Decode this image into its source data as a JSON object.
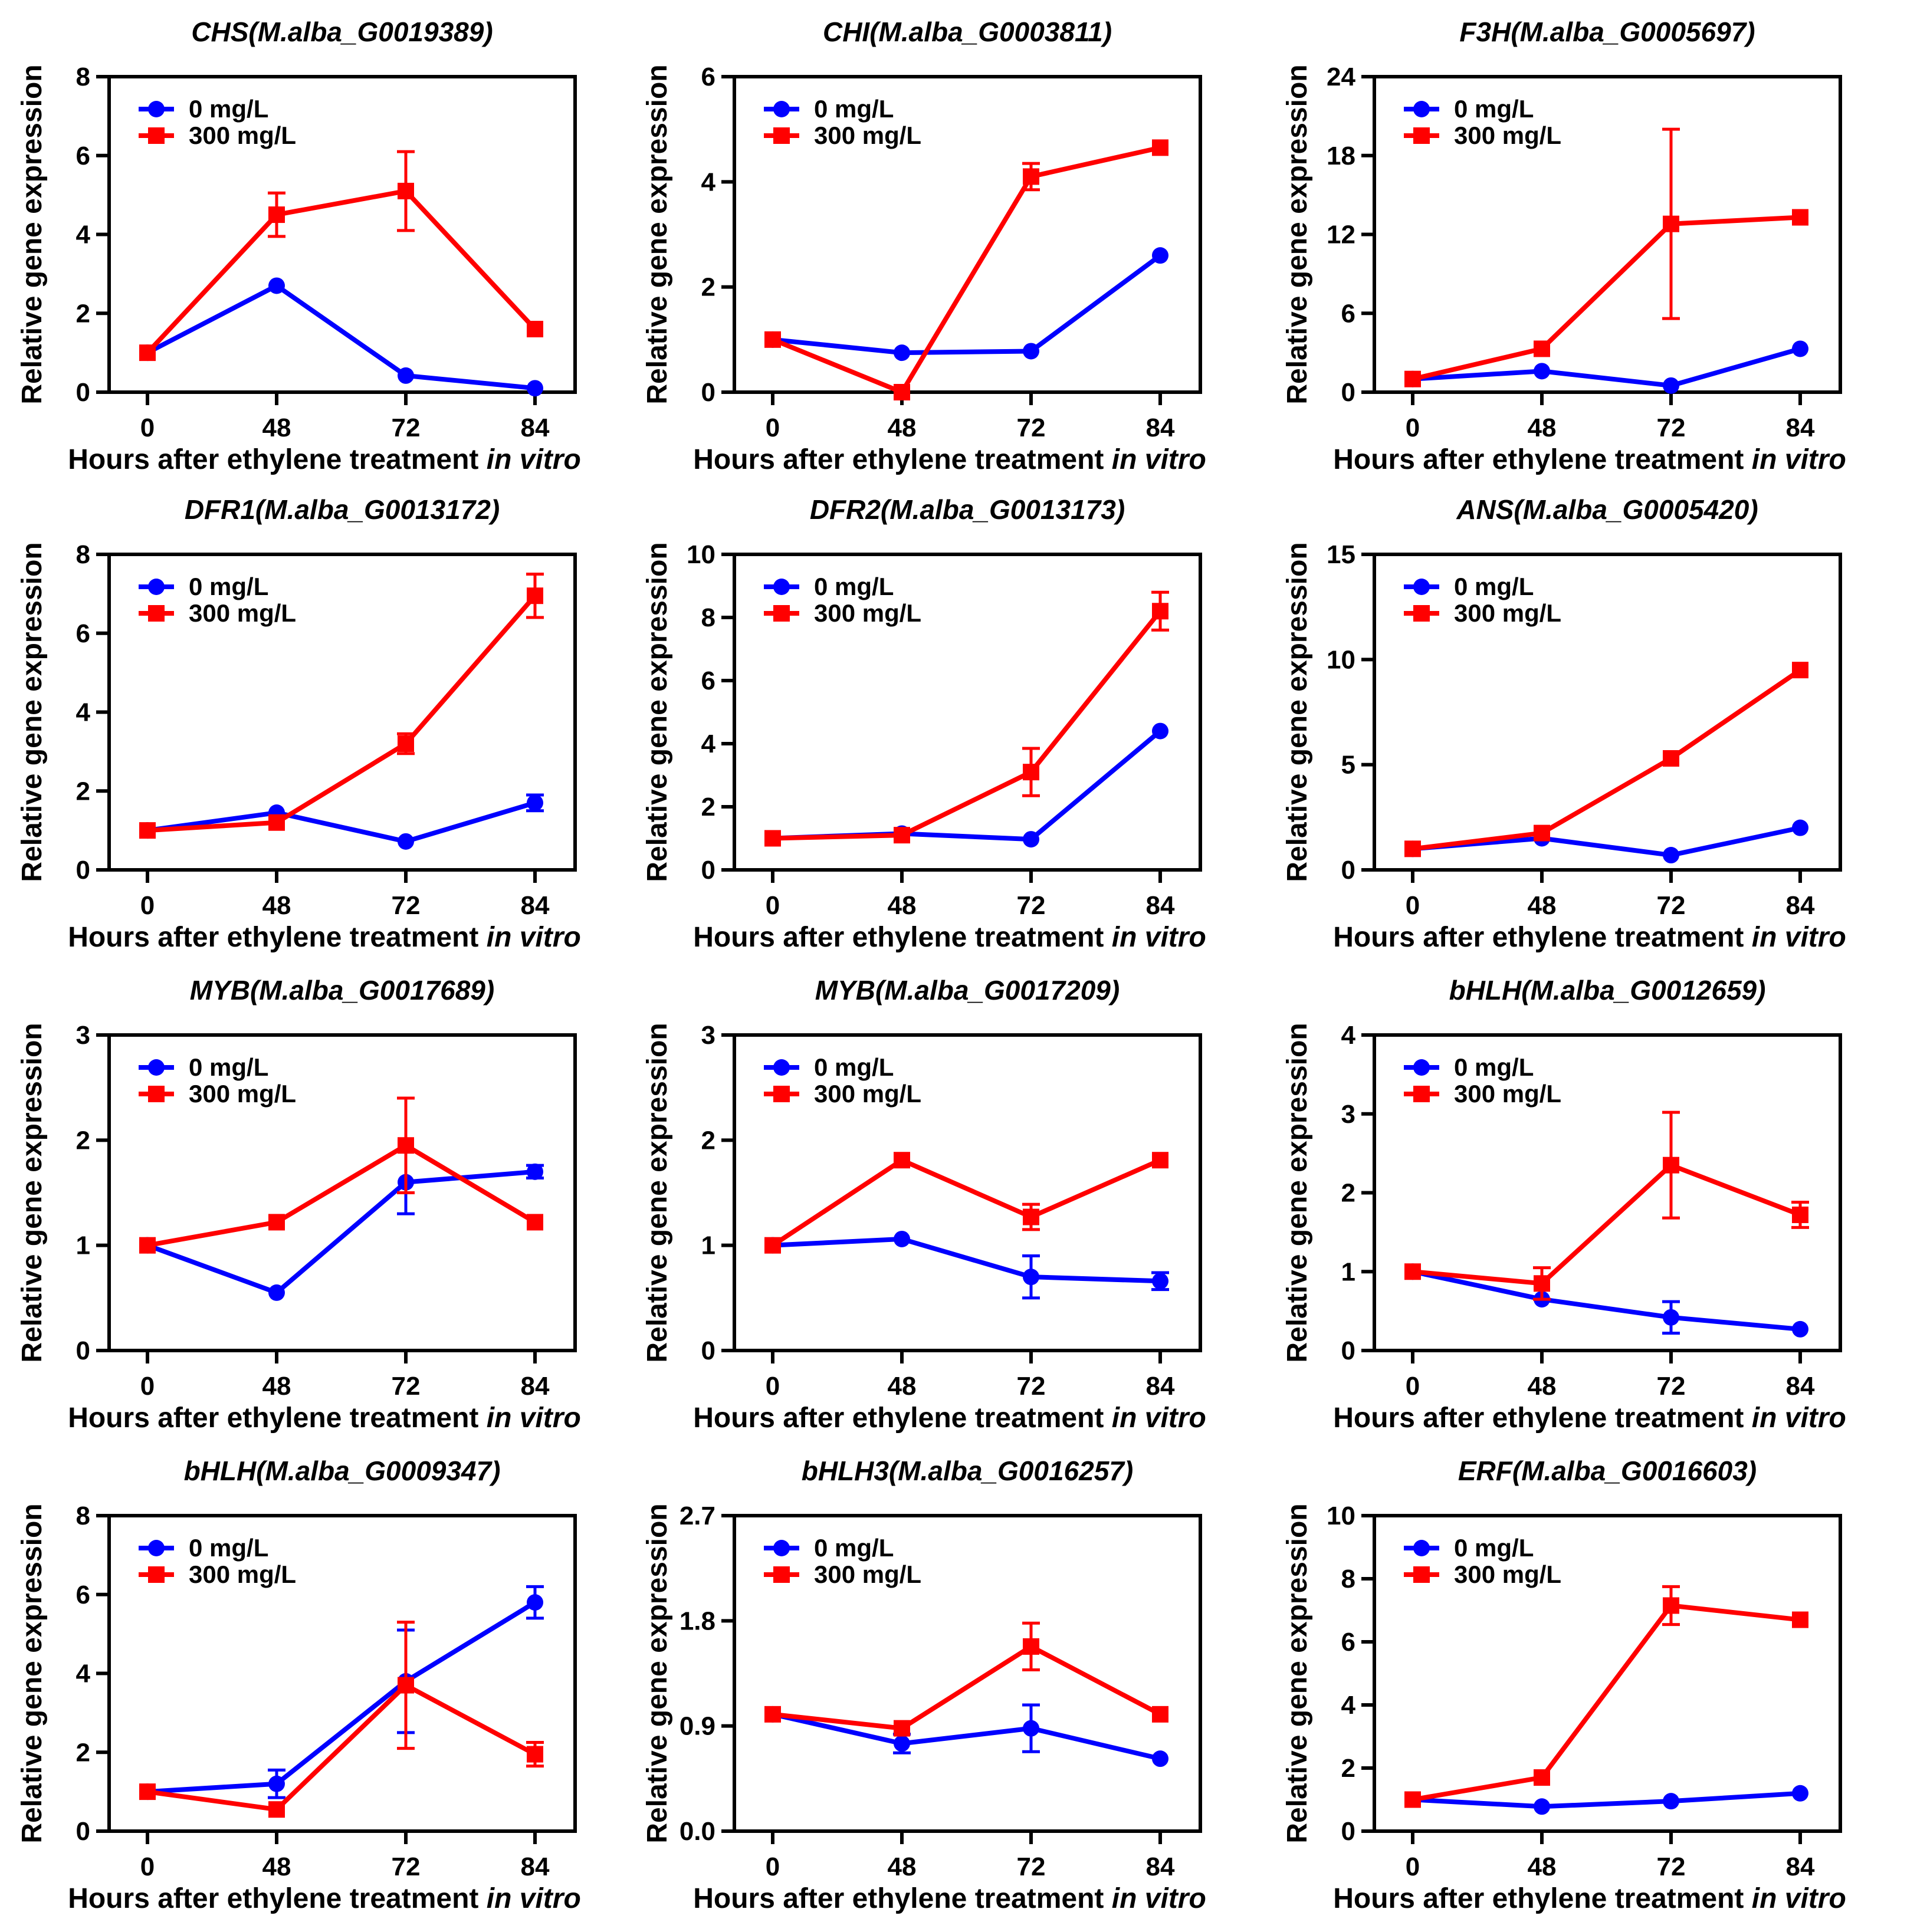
{
  "chart_data": [
    {
      "type": "line",
      "title": "CHS(M.alba_G0019389)",
      "xlabel": "Hours after ethylene treatment",
      "xlabel_italic": "in vitro",
      "ylabel": "Relative gene expression",
      "categories": [
        "0",
        "48",
        "72",
        "84"
      ],
      "ylim": [
        0,
        8
      ],
      "yticks": [
        "0",
        "2",
        "4",
        "6",
        "8"
      ],
      "series": [
        {
          "name": "0 mg/L",
          "color": "#0000ff",
          "marker": "circle",
          "values": [
            1.0,
            2.7,
            0.42,
            0.1
          ],
          "errors": [
            0,
            0,
            0,
            0
          ]
        },
        {
          "name": "300 mg/L",
          "color": "#ff0000",
          "marker": "square",
          "values": [
            1.0,
            4.5,
            5.1,
            1.6
          ],
          "errors": [
            0,
            0.55,
            1.0,
            0
          ]
        }
      ]
    },
    {
      "type": "line",
      "title": "CHI(M.alba_G0003811)",
      "xlabel": "Hours after ethylene treatment",
      "xlabel_italic": "in vitro",
      "ylabel": "Relative gene expression",
      "categories": [
        "0",
        "48",
        "72",
        "84"
      ],
      "ylim": [
        0,
        6
      ],
      "yticks": [
        "0",
        "2",
        "4",
        "6"
      ],
      "series": [
        {
          "name": "0 mg/L",
          "color": "#0000ff",
          "marker": "circle",
          "values": [
            1.0,
            0.75,
            0.78,
            2.6
          ],
          "errors": [
            0,
            0,
            0,
            0
          ]
        },
        {
          "name": "300 mg/L",
          "color": "#ff0000",
          "marker": "square",
          "values": [
            1.0,
            0.0,
            4.1,
            4.65
          ],
          "errors": [
            0,
            0,
            0.25,
            0
          ]
        }
      ]
    },
    {
      "type": "line",
      "title": "F3H(M.alba_G0005697)",
      "xlabel": "Hours after ethylene treatment",
      "xlabel_italic": "in vitro",
      "ylabel": "Relative gene expression",
      "categories": [
        "0",
        "48",
        "72",
        "84"
      ],
      "ylim": [
        0,
        24
      ],
      "yticks": [
        "0",
        "6",
        "12",
        "18",
        "24"
      ],
      "series": [
        {
          "name": "0 mg/L",
          "color": "#0000ff",
          "marker": "circle",
          "values": [
            1.0,
            1.6,
            0.5,
            3.3
          ],
          "errors": [
            0,
            0,
            0,
            0
          ]
        },
        {
          "name": "300 mg/L",
          "color": "#ff0000",
          "marker": "square",
          "values": [
            1.0,
            3.3,
            12.8,
            13.3
          ],
          "errors": [
            0,
            0,
            7.2,
            0
          ]
        }
      ]
    },
    {
      "type": "line",
      "title": "DFR1(M.alba_G0013172)",
      "xlabel": "Hours after ethylene treatment",
      "xlabel_italic": "in vitro",
      "ylabel": "Relative gene expression",
      "categories": [
        "0",
        "48",
        "72",
        "84"
      ],
      "ylim": [
        0,
        8
      ],
      "yticks": [
        "0",
        "2",
        "4",
        "6",
        "8"
      ],
      "series": [
        {
          "name": "0 mg/L",
          "color": "#0000ff",
          "marker": "circle",
          "values": [
            1.0,
            1.45,
            0.72,
            1.7
          ],
          "errors": [
            0,
            0,
            0,
            0.2
          ]
        },
        {
          "name": "300 mg/L",
          "color": "#ff0000",
          "marker": "square",
          "values": [
            1.0,
            1.2,
            3.2,
            6.95
          ],
          "errors": [
            0,
            0,
            0.25,
            0.55
          ]
        }
      ]
    },
    {
      "type": "line",
      "title": "DFR2(M.alba_G0013173)",
      "xlabel": "Hours after ethylene treatment",
      "xlabel_italic": "in vitro",
      "ylabel": "Relative gene expression",
      "categories": [
        "0",
        "48",
        "72",
        "84"
      ],
      "ylim": [
        0,
        10
      ],
      "yticks": [
        "0",
        "2",
        "4",
        "6",
        "8",
        "10"
      ],
      "series": [
        {
          "name": "0 mg/L",
          "color": "#0000ff",
          "marker": "circle",
          "values": [
            1.0,
            1.15,
            0.97,
            4.4
          ],
          "errors": [
            0,
            0,
            0,
            0
          ]
        },
        {
          "name": "300 mg/L",
          "color": "#ff0000",
          "marker": "square",
          "values": [
            1.0,
            1.1,
            3.1,
            8.2
          ],
          "errors": [
            0,
            0,
            0.75,
            0.6
          ]
        }
      ]
    },
    {
      "type": "line",
      "title": "ANS(M.alba_G0005420)",
      "xlabel": "Hours after ethylene treatment",
      "xlabel_italic": "in vitro",
      "ylabel": "Relative gene expression",
      "categories": [
        "0",
        "48",
        "72",
        "84"
      ],
      "ylim": [
        0,
        15
      ],
      "yticks": [
        "0",
        "5",
        "10",
        "15"
      ],
      "series": [
        {
          "name": "0 mg/L",
          "color": "#0000ff",
          "marker": "circle",
          "values": [
            1.0,
            1.5,
            0.7,
            2.0
          ],
          "errors": [
            0,
            0,
            0,
            0
          ]
        },
        {
          "name": "300 mg/L",
          "color": "#ff0000",
          "marker": "square",
          "values": [
            1.0,
            1.75,
            5.3,
            9.5
          ],
          "errors": [
            0,
            0,
            0,
            0
          ]
        }
      ]
    },
    {
      "type": "line",
      "title": "MYB(M.alba_G0017689)",
      "xlabel": "Hours after ethylene treatment",
      "xlabel_italic": "in vitro",
      "ylabel": "Relative gene expression",
      "categories": [
        "0",
        "48",
        "72",
        "84"
      ],
      "ylim": [
        0,
        3
      ],
      "yticks": [
        "0",
        "1",
        "2",
        "3"
      ],
      "series": [
        {
          "name": "0 mg/L",
          "color": "#0000ff",
          "marker": "circle",
          "values": [
            1.0,
            0.55,
            1.6,
            1.7
          ],
          "errors": [
            0,
            0,
            0.3,
            0.06
          ]
        },
        {
          "name": "300 mg/L",
          "color": "#ff0000",
          "marker": "square",
          "values": [
            1.0,
            1.22,
            1.95,
            1.22
          ],
          "errors": [
            0,
            0,
            0.45,
            0
          ]
        }
      ]
    },
    {
      "type": "line",
      "title": "MYB(M.alba_G0017209)",
      "xlabel": "Hours after ethylene treatment",
      "xlabel_italic": "in vitro",
      "ylabel": "Relative gene expression",
      "categories": [
        "0",
        "48",
        "72",
        "84"
      ],
      "ylim": [
        0,
        3
      ],
      "yticks": [
        "0",
        "1",
        "2",
        "3"
      ],
      "series": [
        {
          "name": "0 mg/L",
          "color": "#0000ff",
          "marker": "circle",
          "values": [
            1.0,
            1.06,
            0.7,
            0.66
          ],
          "errors": [
            0,
            0,
            0.2,
            0.08
          ]
        },
        {
          "name": "300 mg/L",
          "color": "#ff0000",
          "marker": "square",
          "values": [
            1.0,
            1.81,
            1.27,
            1.81
          ],
          "errors": [
            0,
            0,
            0.12,
            0
          ]
        }
      ]
    },
    {
      "type": "line",
      "title": "bHLH(M.alba_G0012659)",
      "xlabel": "Hours after ethylene treatment",
      "xlabel_italic": "in vitro",
      "ylabel": "Relative gene expression",
      "categories": [
        "0",
        "48",
        "72",
        "84"
      ],
      "ylim": [
        0,
        4
      ],
      "yticks": [
        "0",
        "1",
        "2",
        "3",
        "4"
      ],
      "series": [
        {
          "name": "0 mg/L",
          "color": "#0000ff",
          "marker": "circle",
          "values": [
            1.0,
            0.65,
            0.42,
            0.27
          ],
          "errors": [
            0,
            0,
            0.2,
            0
          ]
        },
        {
          "name": "300 mg/L",
          "color": "#ff0000",
          "marker": "square",
          "values": [
            1.0,
            0.85,
            2.35,
            1.72
          ],
          "errors": [
            0,
            0.2,
            0.67,
            0.16
          ]
        }
      ]
    },
    {
      "type": "line",
      "title": "bHLH(M.alba_G0009347)",
      "xlabel": "Hours after ethylene treatment",
      "xlabel_italic": "in vitro",
      "ylabel": "Relative gene expression",
      "categories": [
        "0",
        "48",
        "72",
        "84"
      ],
      "ylim": [
        0,
        8
      ],
      "yticks": [
        "0",
        "2",
        "4",
        "6",
        "8"
      ],
      "series": [
        {
          "name": "0 mg/L",
          "color": "#0000ff",
          "marker": "circle",
          "values": [
            1.0,
            1.2,
            3.8,
            5.8
          ],
          "errors": [
            0,
            0.35,
            1.3,
            0.4
          ]
        },
        {
          "name": "300 mg/L",
          "color": "#ff0000",
          "marker": "square",
          "values": [
            1.0,
            0.55,
            3.7,
            1.95
          ],
          "errors": [
            0,
            0,
            1.6,
            0.3
          ]
        }
      ]
    },
    {
      "type": "line",
      "title": "bHLH3(M.alba_G0016257)",
      "xlabel": "Hours after ethylene treatment",
      "xlabel_italic": "in vitro",
      "ylabel": "Relative gene expression",
      "categories": [
        "0",
        "48",
        "72",
        "84"
      ],
      "ylim": [
        0,
        2.7
      ],
      "yticks": [
        "0.0",
        "0.9",
        "1.8",
        "2.7"
      ],
      "series": [
        {
          "name": "0 mg/L",
          "color": "#0000ff",
          "marker": "circle",
          "values": [
            1.0,
            0.75,
            0.88,
            0.62
          ],
          "errors": [
            0,
            0.08,
            0.2,
            0
          ]
        },
        {
          "name": "300 mg/L",
          "color": "#ff0000",
          "marker": "square",
          "values": [
            1.0,
            0.88,
            1.58,
            1.0
          ],
          "errors": [
            0,
            0,
            0.2,
            0
          ]
        }
      ]
    },
    {
      "type": "line",
      "title": "ERF(M.alba_G0016603)",
      "xlabel": "Hours after ethylene treatment",
      "xlabel_italic": "in vitro",
      "ylabel": "Relative gene expression",
      "categories": [
        "0",
        "48",
        "72",
        "84"
      ],
      "ylim": [
        0,
        10
      ],
      "yticks": [
        "0",
        "2",
        "4",
        "6",
        "8",
        "10"
      ],
      "series": [
        {
          "name": "0 mg/L",
          "color": "#0000ff",
          "marker": "circle",
          "values": [
            1.0,
            0.78,
            0.95,
            1.2
          ],
          "errors": [
            0,
            0,
            0,
            0
          ]
        },
        {
          "name": "300 mg/L",
          "color": "#ff0000",
          "marker": "square",
          "values": [
            1.0,
            1.7,
            7.15,
            6.7
          ],
          "errors": [
            0,
            0,
            0.6,
            0
          ]
        }
      ]
    }
  ]
}
